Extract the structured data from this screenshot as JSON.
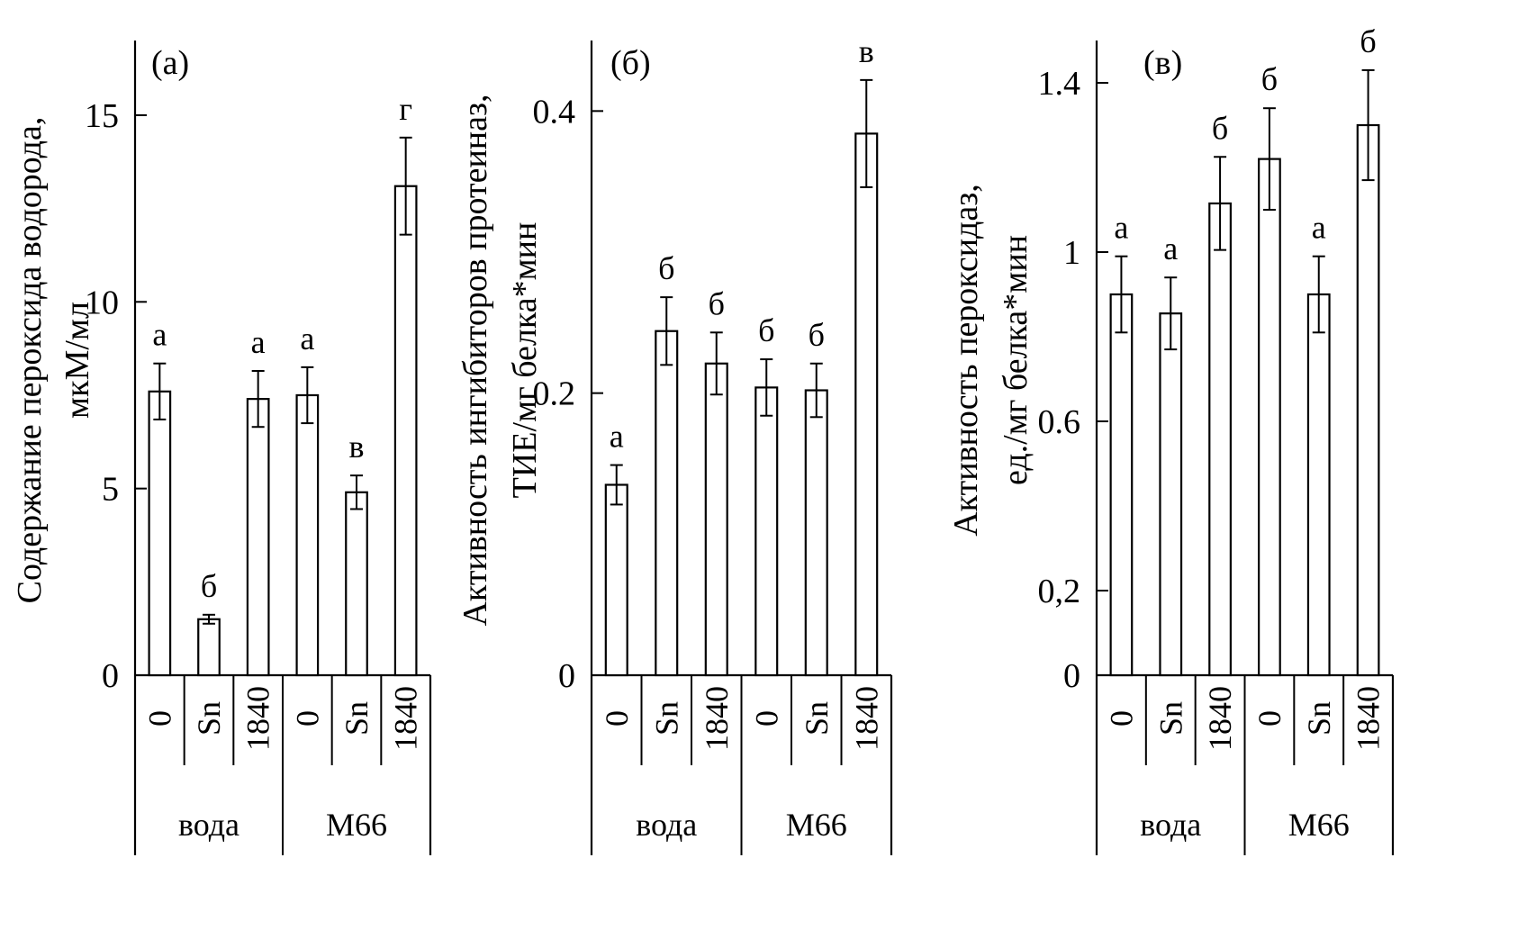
{
  "colors": {
    "ink": "#000000",
    "bar_fill": "#ffffff",
    "background": "#ffffff"
  },
  "chart_data": [
    {
      "type": "bar",
      "panel_label": "(а)",
      "ylabel": [
        "Содержание пероксида водорода,",
        "мкМ/мл"
      ],
      "ylim": [
        0,
        17
      ],
      "yticks": [
        0,
        5,
        10,
        15
      ],
      "ytick_labels": [
        "0",
        "5",
        "10",
        "15"
      ],
      "categories": [
        "0",
        "Sn",
        "1840",
        "0",
        "Sn",
        "1840"
      ],
      "groups": [
        {
          "name": "вода",
          "size": 3
        },
        {
          "name": "М66",
          "size": 3
        }
      ],
      "values": [
        7.6,
        1.5,
        7.4,
        7.5,
        4.9,
        13.1
      ],
      "errors": [
        0.75,
        0.12,
        0.75,
        0.75,
        0.45,
        1.3
      ],
      "letters": [
        "а",
        "б",
        "а",
        "а",
        "в",
        "г"
      ]
    },
    {
      "type": "bar",
      "panel_label": "(б)",
      "ylabel": [
        "Активность ингибиторов протеиназ,",
        "ТИЕ/мг белка*мин"
      ],
      "ylim": [
        0,
        0.45
      ],
      "yticks": [
        0,
        0.2,
        0.4
      ],
      "ytick_labels": [
        "0",
        "0.2",
        "0.4"
      ],
      "categories": [
        "0",
        "Sn",
        "1840",
        "0",
        "Sn",
        "1840"
      ],
      "groups": [
        {
          "name": "вода",
          "size": 3
        },
        {
          "name": "М66",
          "size": 3
        }
      ],
      "values": [
        0.135,
        0.244,
        0.221,
        0.204,
        0.202,
        0.384
      ],
      "errors": [
        0.014,
        0.024,
        0.022,
        0.02,
        0.019,
        0.038
      ],
      "letters": [
        "а",
        "б",
        "б",
        "б",
        "б",
        "в"
      ]
    },
    {
      "type": "bar",
      "panel_label": "(в)",
      "ylabel": [
        "Активность пероксидаз,",
        "ед./мг белка*мин"
      ],
      "ylim": [
        0,
        1.5
      ],
      "yticks": [
        0,
        0.2,
        0.6,
        1,
        1.4
      ],
      "ytick_labels": [
        "0",
        "0,2",
        "0.6",
        "1",
        "1.4"
      ],
      "categories": [
        "0",
        "Sn",
        "1840",
        "0",
        "Sn",
        "1840"
      ],
      "groups": [
        {
          "name": "вода",
          "size": 3
        },
        {
          "name": "М66",
          "size": 3
        }
      ],
      "values": [
        0.9,
        0.855,
        1.115,
        1.22,
        0.9,
        1.3
      ],
      "errors": [
        0.09,
        0.085,
        0.11,
        0.12,
        0.09,
        0.13
      ],
      "letters": [
        "а",
        "а",
        "б",
        "б",
        "а",
        "б"
      ]
    }
  ]
}
